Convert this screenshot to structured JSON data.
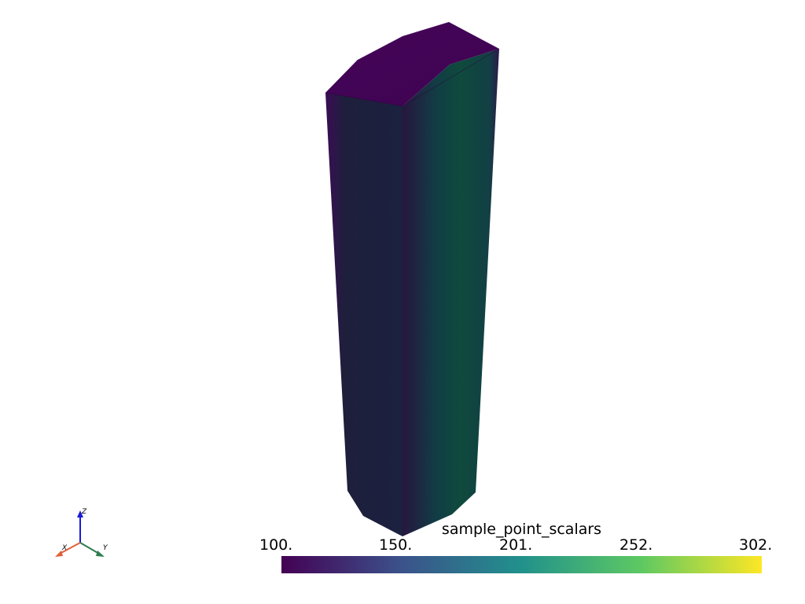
{
  "scalar_bar": {
    "title": "sample_point_scalars",
    "ticks": [
      "100.",
      "150.",
      "201.",
      "252.",
      "302."
    ],
    "colormap": "viridis",
    "colors": [
      "#440154",
      "#3b528b",
      "#21918c",
      "#5ec962",
      "#fde725"
    ]
  },
  "mesh": {
    "top_face_color": "#440154",
    "left_face_colors": [
      "#3a0d55",
      "#1e1f3b",
      "#1b2140"
    ],
    "right_face_colors": [
      "#27163f",
      "#113d45",
      "#0f4a3d",
      "#2b1a4a"
    ]
  },
  "orientation_axes": {
    "x_label": "X",
    "y_label": "Y",
    "z_label": "Z",
    "x_color": "#e0603c",
    "y_color": "#2e7d4f",
    "z_color": "#1a1ad6"
  }
}
